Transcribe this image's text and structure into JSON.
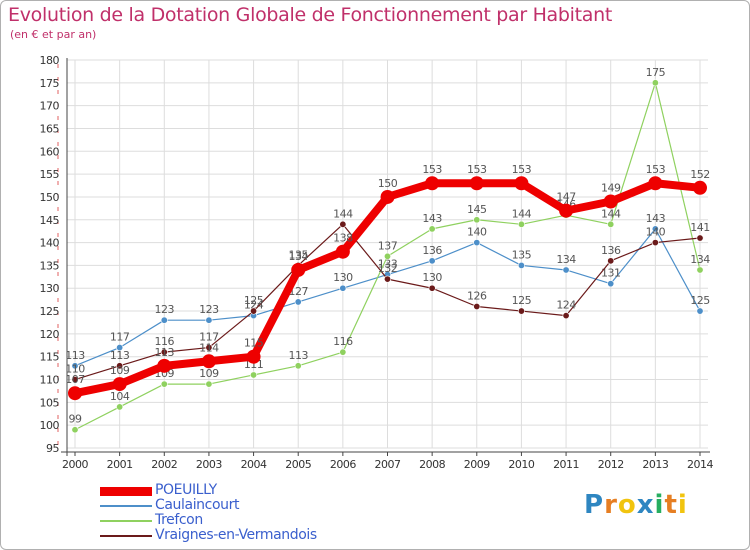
{
  "title": "Evolution de la Dotation Globale de Fonctionnement par Habitant",
  "subtitle": "(en € et par an)",
  "brand": {
    "text": "Proxiti",
    "letters": [
      "P",
      "r",
      "o",
      "x",
      "i",
      "t",
      "i"
    ],
    "colors": [
      "#2e86c1",
      "#e67e22",
      "#f1c40f",
      "#2e86c1",
      "#27ae60",
      "#e67e22",
      "#f1c40f"
    ]
  },
  "chart_data": {
    "type": "line",
    "title": "Evolution de la Dotation Globale de Fonctionnement par Habitant",
    "subtitle": "(en € et par an)",
    "xlabel": "",
    "ylabel": "",
    "x": [
      "2000",
      "2001",
      "2002",
      "2003",
      "2004",
      "2005",
      "2006",
      "2007",
      "2008",
      "2009",
      "2010",
      "2011",
      "2012",
      "2013",
      "2014"
    ],
    "ylim": [
      95,
      180
    ],
    "yticks": [
      95,
      100,
      105,
      110,
      115,
      120,
      125,
      130,
      135,
      140,
      145,
      150,
      155,
      160,
      165,
      170,
      175,
      180
    ],
    "grid": true,
    "legend_position": "bottom-left",
    "series": [
      {
        "name": "POEUILLY",
        "color": "#ee0000",
        "values": [
          107,
          109,
          113,
          114,
          115,
          134,
          138,
          150,
          153,
          153,
          153,
          147,
          149,
          153,
          152
        ]
      },
      {
        "name": "Caulaincourt",
        "color": "#4d8fc9",
        "values": [
          113,
          117,
          123,
          123,
          124,
          127,
          130,
          133,
          136,
          140,
          135,
          134,
          131,
          143,
          125
        ]
      },
      {
        "name": "Trefcon",
        "color": "#8fd15f",
        "values": [
          99,
          104,
          109,
          109,
          111,
          113,
          116,
          137,
          143,
          145,
          144,
          146,
          144,
          175,
          134
        ]
      },
      {
        "name": "Vraignes-en-Vermandois",
        "color": "#6b1a1a",
        "values": [
          110,
          113,
          116,
          117,
          125,
          135,
          144,
          132,
          130,
          126,
          125,
          124,
          136,
          140,
          141
        ]
      }
    ]
  }
}
